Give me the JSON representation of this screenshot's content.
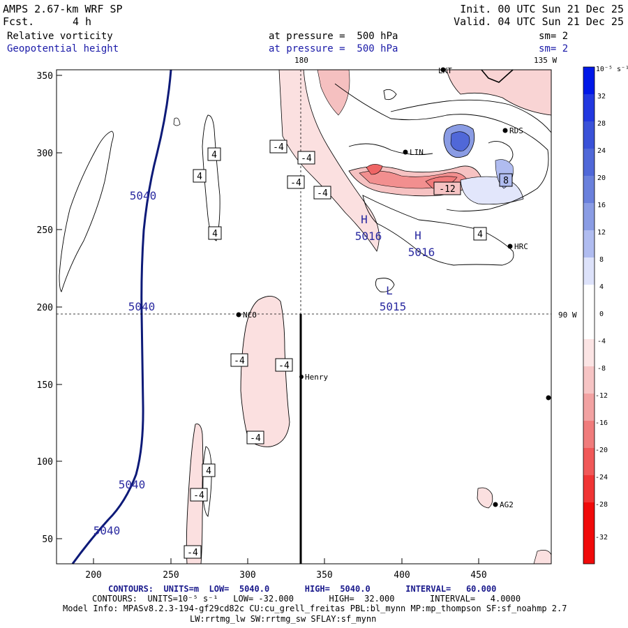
{
  "header": {
    "model": "AMPS 2.67-km WRF SP",
    "fcst_label": "Fcst.",
    "fcst_value": "4 h",
    "init": "Init. 00 UTC Sun 21 Dec 25",
    "valid": "Valid. 04 UTC Sun 21 Dec 25",
    "field1": "Relative vorticity",
    "field2": "Geopotential height",
    "level1": "at pressure =  500 hPa",
    "level2": "at pressure =  500 hPa",
    "sm1": "sm= 2",
    "sm2": "sm= 2",
    "lon180": "180",
    "lon135": "135 W",
    "lat90": "90 W"
  },
  "axes": {
    "x_ticks": [
      "200",
      "250",
      "300",
      "350",
      "400",
      "450"
    ],
    "y_ticks": [
      "350",
      "300",
      "250",
      "200",
      "150",
      "100",
      "50"
    ]
  },
  "colorbar": {
    "unit": "10⁻⁵ s⁻¹",
    "labels": [
      "32",
      "28",
      "24",
      "20",
      "16",
      "12",
      "8",
      "4",
      "0",
      "-4",
      "-8",
      "-12",
      "-16",
      "-20",
      "-24",
      "-28",
      "-32"
    ],
    "colors": [
      "#0018e8",
      "#2238e0",
      "#3a52d8",
      "#5068d8",
      "#6a80dc",
      "#8a9ce4",
      "#b0bcf0",
      "#dde2fa",
      "#ffffff",
      "#ffffff",
      "#fbe4e4",
      "#f6c4c4",
      "#f2a2a2",
      "#f07c7c",
      "#f05858",
      "#f03434",
      "#f00a0a"
    ]
  },
  "height_labels": {
    "c5040_a": "5040",
    "c5040_b": "5040",
    "c5040_c": "5040",
    "c5040_d": "5040",
    "high1": "H",
    "high1_val": "5016",
    "high2": "H",
    "high2_val": "5016",
    "low1": "L",
    "low1_val": "5015"
  },
  "vort_labels": [
    "4",
    "4",
    "4",
    "-4",
    "-4",
    "-4",
    "-4",
    "-12",
    "8",
    "4",
    "-4",
    "-4",
    "-4",
    "4",
    "-4",
    "-4"
  ],
  "stations": {
    "nco": "NCO",
    "henry": "Henry",
    "lin": "LIN",
    "rds": "RDS",
    "hrc": "HRC",
    "ag2": "AG2",
    "lkt": "LKT"
  },
  "footer": {
    "line1": "CONTOURS:  UNITS=m  LOW=  5040.0       HIGH=  5040.0       INTERVAL=   60.000",
    "line2": "CONTOURS:  UNITS=10⁻⁵ s⁻¹   LOW= -32.000       HIGH=  32.000       INTERVAL=   4.0000",
    "line3": "Model Info: MPASv8.2.3-194-gf29cd82c CU:cu_grell_freitas PBL:bl_mynn MP:mp_thompson SF:sf_noahmp 2.7",
    "line4": "LW:rrtmg_lw SW:rrtmg_sw SFLAY:sf_mynn"
  }
}
